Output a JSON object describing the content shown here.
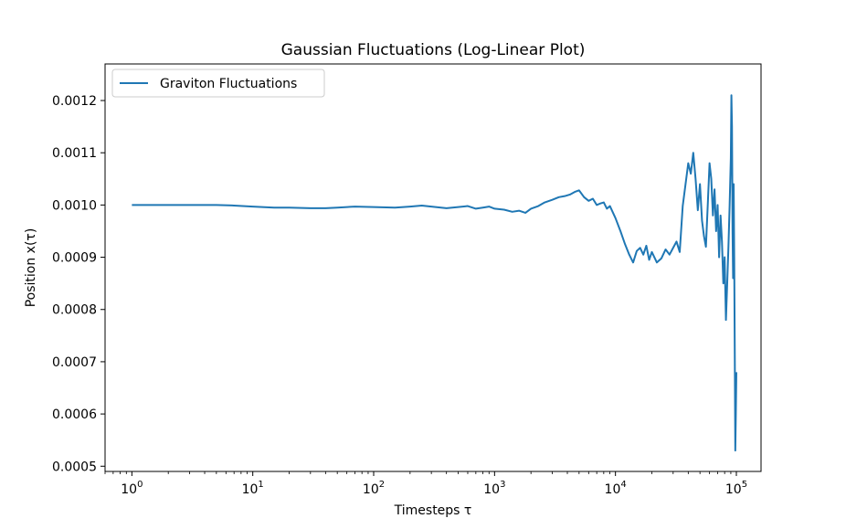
{
  "chart_data": {
    "type": "line",
    "title": "Gaussian Fluctuations (Log-Linear Plot)",
    "xlabel": "Timesteps τ",
    "ylabel": "Position x(τ)",
    "x_scale": "log",
    "xlim": [
      0.6,
      160000
    ],
    "ylim": [
      0.00049,
      0.00127
    ],
    "x_ticks": [
      1,
      10,
      100,
      1000,
      10000,
      100000
    ],
    "x_tick_labels": [
      {
        "base": "10",
        "exp": "0"
      },
      {
        "base": "10",
        "exp": "1"
      },
      {
        "base": "10",
        "exp": "2"
      },
      {
        "base": "10",
        "exp": "3"
      },
      {
        "base": "10",
        "exp": "4"
      },
      {
        "base": "10",
        "exp": "5"
      }
    ],
    "y_ticks": [
      0.0005,
      0.0006,
      0.0007,
      0.0008,
      0.0009,
      0.001,
      0.0011,
      0.0012
    ],
    "y_tick_labels": [
      "0.0005",
      "0.0006",
      "0.0007",
      "0.0008",
      "0.0009",
      "0.0010",
      "0.0011",
      "0.0012"
    ],
    "grid": false,
    "legend_position": "top-left",
    "series": [
      {
        "name": "Graviton Fluctuations",
        "color": "#1f77b4",
        "x": [
          1,
          2,
          3,
          5,
          7,
          10,
          15,
          20,
          30,
          40,
          50,
          70,
          100,
          150,
          200,
          250,
          300,
          400,
          500,
          600,
          700,
          800,
          900,
          1000,
          1200,
          1400,
          1600,
          1800,
          2000,
          2300,
          2600,
          3000,
          3400,
          3800,
          4200,
          4600,
          5000,
          5500,
          6000,
          6500,
          7000,
          7500,
          8000,
          8500,
          9000,
          10000,
          11000,
          12000,
          13000,
          14000,
          15000,
          16000,
          17000,
          18000,
          19000,
          20000,
          22000,
          24000,
          26000,
          28000,
          30000,
          32000,
          34000,
          36000,
          38000,
          40000,
          42000,
          44000,
          46000,
          48000,
          50000,
          52000,
          54000,
          56000,
          58000,
          60000,
          62000,
          64000,
          66000,
          68000,
          70000,
          72000,
          74000,
          76000,
          78000,
          80000,
          82000,
          84000,
          86000,
          88000,
          90000,
          91000,
          92000,
          93000,
          94000,
          95000,
          96000,
          97000,
          98000,
          99000,
          100000
        ],
        "y": [
          0.001,
          0.001,
          0.001,
          0.001,
          0.000999,
          0.000997,
          0.000995,
          0.000995,
          0.000994,
          0.000994,
          0.000995,
          0.000997,
          0.000996,
          0.000995,
          0.000997,
          0.000999,
          0.000997,
          0.000994,
          0.000996,
          0.000998,
          0.000993,
          0.000995,
          0.000997,
          0.000993,
          0.000991,
          0.000987,
          0.000989,
          0.000985,
          0.000993,
          0.000998,
          0.001005,
          0.00101,
          0.001015,
          0.001017,
          0.00102,
          0.001025,
          0.001028,
          0.001015,
          0.001008,
          0.001012,
          0.001,
          0.001003,
          0.001005,
          0.000993,
          0.000998,
          0.000975,
          0.00095,
          0.000925,
          0.000905,
          0.00089,
          0.000912,
          0.000918,
          0.000905,
          0.000922,
          0.000895,
          0.00091,
          0.00089,
          0.000898,
          0.000915,
          0.000905,
          0.000918,
          0.00093,
          0.00091,
          0.000998,
          0.00104,
          0.00108,
          0.00106,
          0.0011,
          0.00105,
          0.00099,
          0.00104,
          0.00097,
          0.00094,
          0.00092,
          0.001,
          0.00108,
          0.00105,
          0.00098,
          0.00103,
          0.00095,
          0.001,
          0.0009,
          0.00098,
          0.00093,
          0.00085,
          0.0009,
          0.00078,
          0.00085,
          0.00092,
          0.001,
          0.00109,
          0.00121,
          0.00115,
          0.00095,
          0.00086,
          0.00104,
          0.0009,
          0.00072,
          0.00053,
          0.0006,
          0.00068
        ]
      }
    ]
  }
}
